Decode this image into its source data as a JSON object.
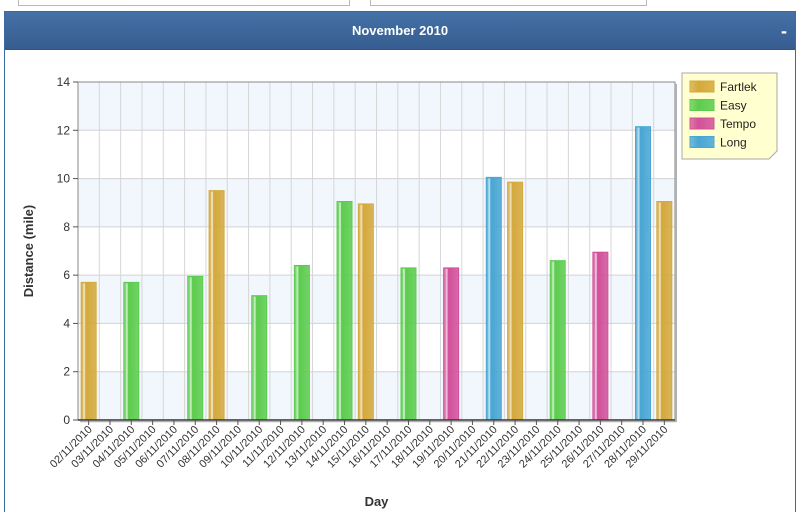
{
  "panel": {
    "title": "November 2010",
    "collapse_label": "-"
  },
  "chart_data": {
    "type": "bar",
    "title": "",
    "xlabel": "Day",
    "ylabel": "Distance (mile)",
    "ylim": [
      0,
      14
    ],
    "yticks": [
      0,
      2,
      4,
      6,
      8,
      10,
      12,
      14
    ],
    "grid": true,
    "legend_position": "top-right",
    "categories": [
      "02/11/2010",
      "03/11/2010",
      "04/11/2010",
      "05/11/2010",
      "06/11/2010",
      "07/11/2010",
      "08/11/2010",
      "09/11/2010",
      "10/11/2010",
      "11/11/2010",
      "12/11/2010",
      "13/11/2010",
      "14/11/2010",
      "15/11/2010",
      "16/11/2010",
      "17/11/2010",
      "18/11/2010",
      "19/11/2010",
      "20/11/2010",
      "21/11/2010",
      "22/11/2010",
      "23/11/2010",
      "24/11/2010",
      "25/11/2010",
      "26/11/2010",
      "27/11/2010",
      "28/11/2010",
      "29/11/2010"
    ],
    "series": [
      {
        "name": "Fartlek",
        "color": "#d4a93c",
        "values": [
          5.7,
          null,
          null,
          null,
          null,
          null,
          9.5,
          null,
          null,
          null,
          null,
          null,
          null,
          8.95,
          null,
          null,
          null,
          null,
          null,
          null,
          9.85,
          null,
          null,
          null,
          null,
          null,
          null,
          9.05
        ]
      },
      {
        "name": "Easy",
        "color": "#5ccc4e",
        "values": [
          null,
          null,
          5.7,
          null,
          null,
          5.95,
          null,
          null,
          5.15,
          null,
          6.4,
          null,
          9.05,
          null,
          null,
          6.3,
          null,
          null,
          null,
          null,
          null,
          null,
          6.6,
          null,
          null,
          null,
          null,
          null
        ]
      },
      {
        "name": "Tempo",
        "color": "#d2509a",
        "values": [
          null,
          null,
          null,
          null,
          null,
          null,
          null,
          null,
          null,
          null,
          null,
          null,
          null,
          null,
          null,
          null,
          null,
          6.3,
          null,
          null,
          null,
          null,
          null,
          null,
          6.95,
          null,
          null,
          null
        ]
      },
      {
        "name": "Long",
        "color": "#48a6d4",
        "values": [
          null,
          null,
          null,
          null,
          null,
          null,
          null,
          null,
          null,
          null,
          null,
          null,
          null,
          null,
          null,
          null,
          null,
          null,
          null,
          10.05,
          null,
          null,
          null,
          null,
          null,
          null,
          12.15,
          null
        ]
      }
    ]
  }
}
